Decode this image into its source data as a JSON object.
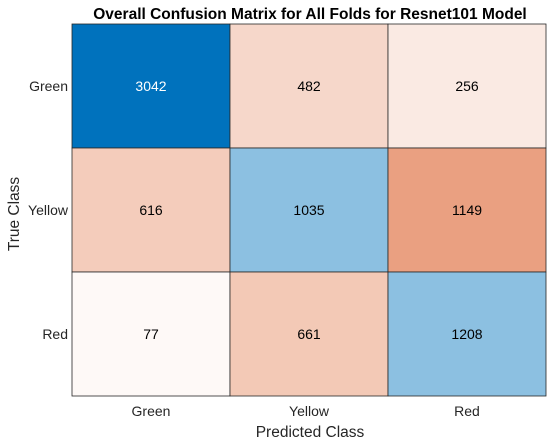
{
  "chart_data": {
    "type": "heatmap",
    "title": "Overall Confusion Matrix for All Folds for Resnet101 Model",
    "xlabel": "Predicted Class",
    "ylabel": "True Class",
    "x_categories": [
      "Green",
      "Yellow",
      "Red"
    ],
    "y_categories": [
      "Green",
      "Yellow",
      "Red"
    ],
    "values": [
      [
        3042,
        482,
        256
      ],
      [
        616,
        1035,
        1149
      ],
      [
        77,
        661,
        1208
      ]
    ],
    "colors": {
      "diagonal_high": "#0072bd",
      "diagonal_low": "#ffffff",
      "offdiag_high": "#d95319",
      "offdiag_low": "#ffffff",
      "grid": "#262626",
      "text_dark": "#000000",
      "text_light": "#ffffff"
    }
  }
}
